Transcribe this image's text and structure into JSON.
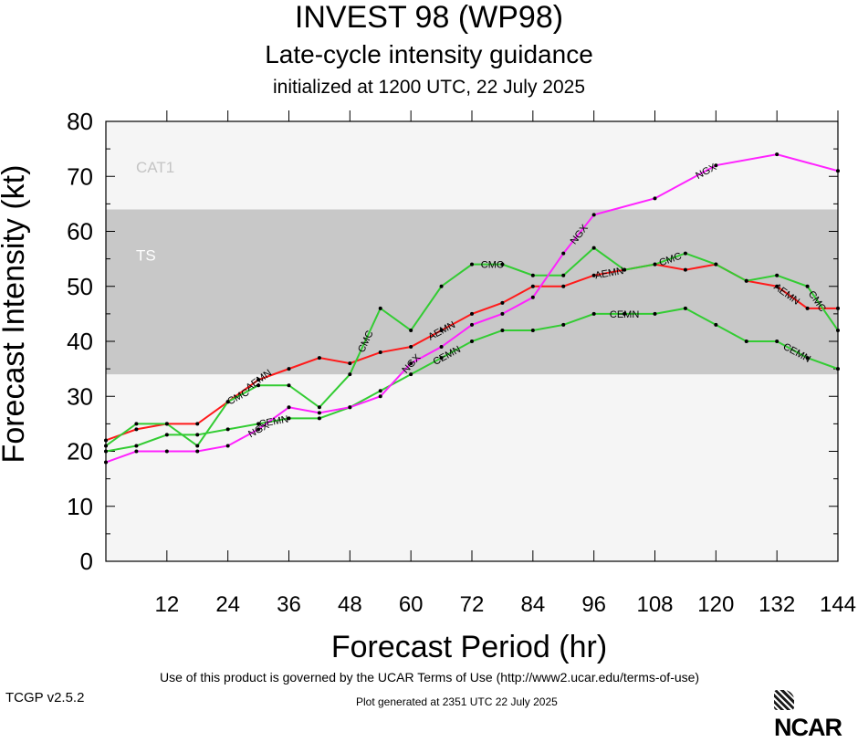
{
  "header": {
    "title": "INVEST 98 (WP98)",
    "subtitle": "Late-cycle intensity guidance",
    "init": "initialized at 1200 UTC, 22 July 2025"
  },
  "footer": {
    "terms": "Use of this product is governed by the UCAR Terms of Use (http://www2.ucar.edu/terms-of-use)",
    "version": "TCGP v2.5.2",
    "generated": "Plot generated at 2351 UTC   22 July 2025",
    "logo": "NCAR"
  },
  "chart_data": {
    "type": "line",
    "xlabel": "Forecast Period (hr)",
    "ylabel": "Forecast Intensity (kt)",
    "xlim": [
      0,
      144
    ],
    "ylim": [
      0,
      80
    ],
    "xticks": [
      12,
      24,
      36,
      48,
      60,
      72,
      84,
      96,
      108,
      120,
      132,
      144
    ],
    "yticks": [
      0,
      10,
      20,
      30,
      40,
      50,
      60,
      70,
      80
    ],
    "bands": [
      {
        "label": "TS",
        "from": 34,
        "to": 64,
        "color": "#c8c8c8"
      },
      {
        "label": "CAT1",
        "from": 64,
        "to": 80,
        "color": "#f5f5f5"
      }
    ],
    "series": [
      {
        "name": "AEMN",
        "color": "#ff1a1a",
        "x": [
          0,
          6,
          12,
          18,
          24,
          30,
          36,
          42,
          48,
          54,
          60,
          66,
          72,
          78,
          84,
          90,
          96,
          102,
          108,
          114,
          120,
          126,
          132,
          138,
          144
        ],
        "y": [
          22,
          24,
          25,
          25,
          29,
          33,
          35,
          37,
          36,
          38,
          39,
          42,
          45,
          47,
          50,
          50,
          52,
          53,
          54,
          53,
          54,
          51,
          50,
          46,
          46
        ]
      },
      {
        "name": "CMC",
        "color": "#33cc33",
        "x": [
          0,
          6,
          12,
          18,
          24,
          30,
          36,
          42,
          48,
          54,
          60,
          66,
          72,
          78,
          84,
          90,
          96,
          102,
          108,
          114,
          120,
          126,
          132,
          138,
          144
        ],
        "y": [
          21,
          25,
          25,
          21,
          29,
          32,
          32,
          28,
          34,
          46,
          42,
          50,
          54,
          54,
          52,
          52,
          57,
          53,
          54,
          56,
          54,
          51,
          52,
          50,
          42
        ]
      },
      {
        "name": "CEMN",
        "color": "#33cc33",
        "x": [
          0,
          6,
          12,
          18,
          24,
          30,
          36,
          42,
          48,
          54,
          60,
          66,
          72,
          78,
          84,
          90,
          96,
          102,
          108,
          114,
          120,
          126,
          132,
          138,
          144
        ],
        "y": [
          20,
          21,
          23,
          23,
          24,
          25,
          26,
          26,
          28,
          31,
          34,
          37,
          40,
          42,
          42,
          43,
          45,
          45,
          45,
          46,
          43,
          40,
          40,
          37,
          35
        ]
      },
      {
        "name": "NGX",
        "color": "#ff22ff",
        "x": [
          0,
          6,
          12,
          18,
          24,
          30,
          36,
          42,
          48,
          54,
          60,
          66,
          72,
          78,
          84,
          90,
          96,
          108,
          120,
          132,
          144
        ],
        "y": [
          18,
          20,
          20,
          20,
          21,
          24,
          28,
          27,
          28,
          30,
          36,
          39,
          43,
          45,
          48,
          56,
          63,
          66,
          72,
          74,
          71
        ]
      }
    ],
    "labels": [
      {
        "series": "CMC",
        "x": 26,
        "text": "CMC"
      },
      {
        "series": "AEMN",
        "x": 30,
        "text": "AEMN"
      },
      {
        "series": "CEMN",
        "x": 33,
        "text": "CEMN"
      },
      {
        "series": "NGX",
        "x": 30,
        "text": "NGX"
      },
      {
        "series": "CMC",
        "x": 51,
        "text": "CMC"
      },
      {
        "series": "AEMN",
        "x": 66,
        "text": "AEMN"
      },
      {
        "series": "NGX",
        "x": 60,
        "text": "NGX"
      },
      {
        "series": "CEMN",
        "x": 67,
        "text": "CEMN"
      },
      {
        "series": "CMC",
        "x": 76,
        "text": "CMC"
      },
      {
        "series": "NGX",
        "x": 93,
        "text": "NGX"
      },
      {
        "series": "AEMN",
        "x": 99,
        "text": "AEMN"
      },
      {
        "series": "CEMN",
        "x": 102,
        "text": "CEMN"
      },
      {
        "series": "CMC",
        "x": 111,
        "text": "CMC"
      },
      {
        "series": "NGX",
        "x": 118,
        "text": "NGX"
      },
      {
        "series": "AEMN",
        "x": 134,
        "text": "AEMN"
      },
      {
        "series": "CMC",
        "x": 140,
        "text": "CMC"
      },
      {
        "series": "CEMN",
        "x": 136,
        "text": "CEMN"
      }
    ]
  }
}
